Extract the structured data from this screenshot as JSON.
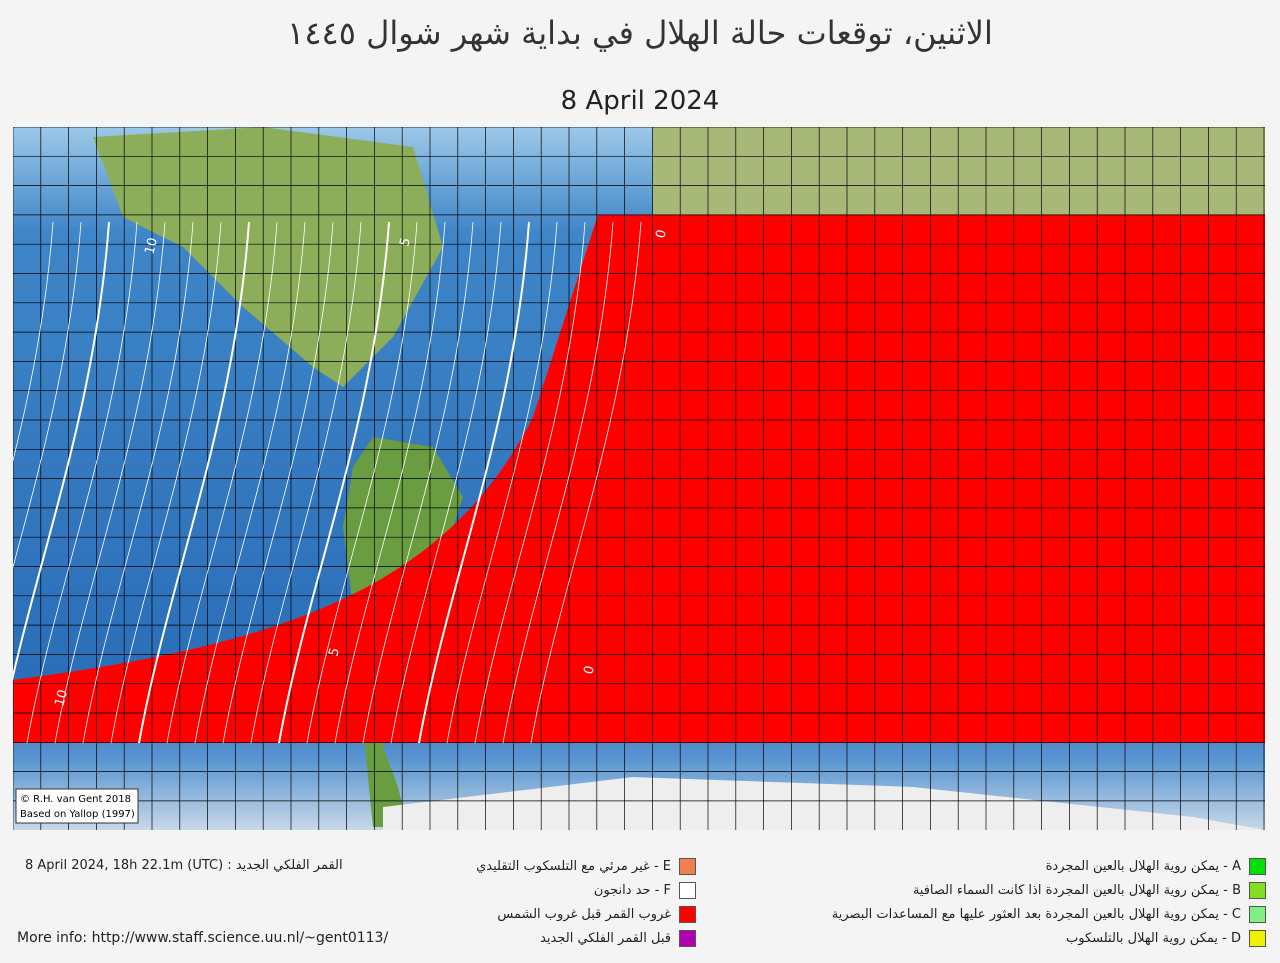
{
  "header": {
    "title": "الاثنين، توقعات حالة الهلال في بداية شهر شوال ١٤٤٥",
    "date": "8 April 2024"
  },
  "map": {
    "contour_labels": [
      "10",
      "5",
      "0",
      "10",
      "5",
      "0"
    ],
    "credits": [
      "© R.H. van Gent 2018",
      "Based on Yallop (1997)"
    ]
  },
  "footer": {
    "new_moon": "8 April 2024, 18h 22.1m (UTC) : القمر الفلكي الجديد",
    "more_info": "More info: http://www.staff.science.uu.nl/~gent0113/"
  },
  "legend_left": [
    {
      "label": "E - غير مرئي مع التلسكوب التقليدي",
      "color": "#f08050"
    },
    {
      "label": "F - حد دانجون",
      "color": "#ffffff"
    },
    {
      "label": "غروب القمر قبل غروب الشمس",
      "color": "#ff0000"
    },
    {
      "label": "قبل القمر  الفلكي الجديد",
      "color": "#b000b0"
    }
  ],
  "legend_right": [
    {
      "label": "A - يمكن روية الهلال بالعين المجردة",
      "color": "#00e000"
    },
    {
      "label": "B - يمكن روية الهلال بالعين المجردة اذا كانت السماء الصافية",
      "color": "#80e020"
    },
    {
      "label": "C - يمكن روية الهلال بالعين المجردة بعد العثور عليها مع المساعدات البصرية",
      "color": "#80f080"
    },
    {
      "label": "D - يمكن روية الهلال بالتلسكوب",
      "color": "#f0f000"
    }
  ]
}
